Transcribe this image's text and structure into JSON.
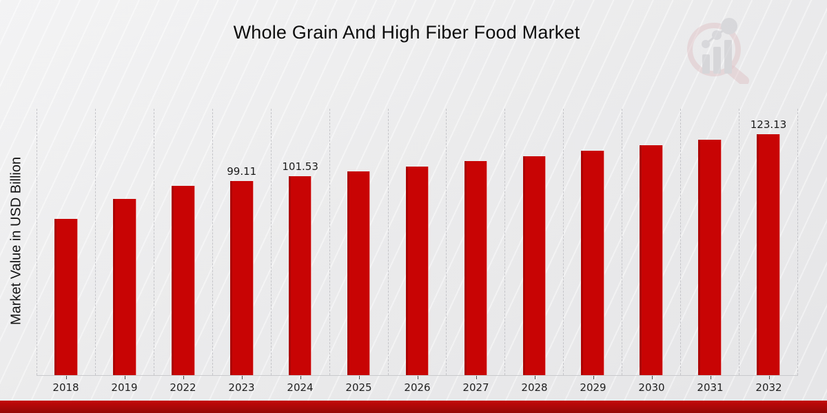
{
  "header": {
    "title": "Whole Grain And High Fiber Food Market"
  },
  "chart_data": {
    "type": "bar",
    "title": "Whole Grain And High Fiber Food Market",
    "xlabel": "",
    "ylabel": "Market Value in USD Billion",
    "categories": [
      "2018",
      "2019",
      "2022",
      "2023",
      "2024",
      "2025",
      "2026",
      "2027",
      "2028",
      "2029",
      "2030",
      "2031",
      "2032"
    ],
    "values": [
      79.8,
      90.0,
      96.75,
      99.11,
      101.53,
      104.01,
      106.55,
      109.15,
      111.81,
      114.54,
      117.33,
      120.19,
      123.13
    ],
    "value_labels": [
      "",
      "",
      "",
      "99.11",
      "101.53",
      "",
      "",
      "",
      "",
      "",
      "",
      "",
      "123.13"
    ],
    "ylim": [
      0,
      136
    ],
    "grid": "vertical-dashed",
    "legend_position": "none",
    "bar_color": "#c80404"
  },
  "branding": {
    "logo_icon": "magnifier-bar-chart-logo",
    "logo_ring_color": "#d9aeb2",
    "logo_bar_color": "#c6c6cb",
    "accent_bar_color": "#b20808"
  }
}
